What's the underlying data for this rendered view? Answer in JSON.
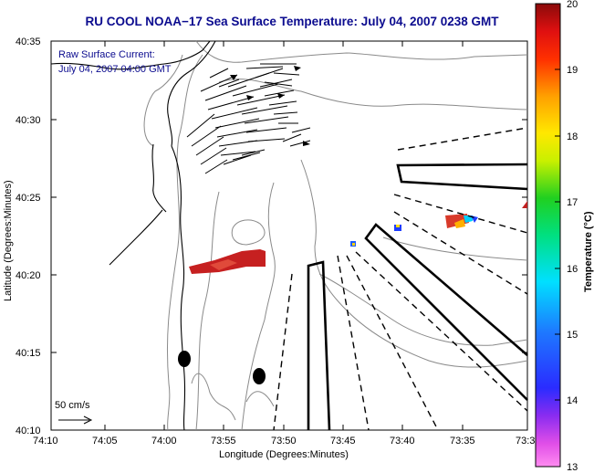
{
  "title": "RU COOL  NOAA−17  Sea Surface Temperature:  July 04, 2007 0238 GMT",
  "annotation": {
    "line1": "Raw Surface Current:",
    "line2": "July 04, 2007 04:00 GMT"
  },
  "scale_label": "50 cm/s",
  "axes": {
    "xlabel": "Longitude (Degrees:Minutes)",
    "ylabel": "Latitude (Degrees:Minutes)",
    "xticks": [
      "74:10",
      "74:05",
      "74:00",
      "73:55",
      "73:50",
      "73:45",
      "73:40",
      "73:35",
      "73:3"
    ],
    "yticks": [
      "40:35",
      "40:30",
      "40:25",
      "40:20",
      "40:15",
      "40:10"
    ]
  },
  "colorbar": {
    "label": "Temperature (°C)",
    "min": 13,
    "max": 20,
    "ticks": [
      "20",
      "19",
      "18",
      "17",
      "16",
      "15",
      "14",
      "13"
    ]
  },
  "colors": {
    "title": "#0b0b8f",
    "land": "#ffffff",
    "contour": "#808080"
  }
}
